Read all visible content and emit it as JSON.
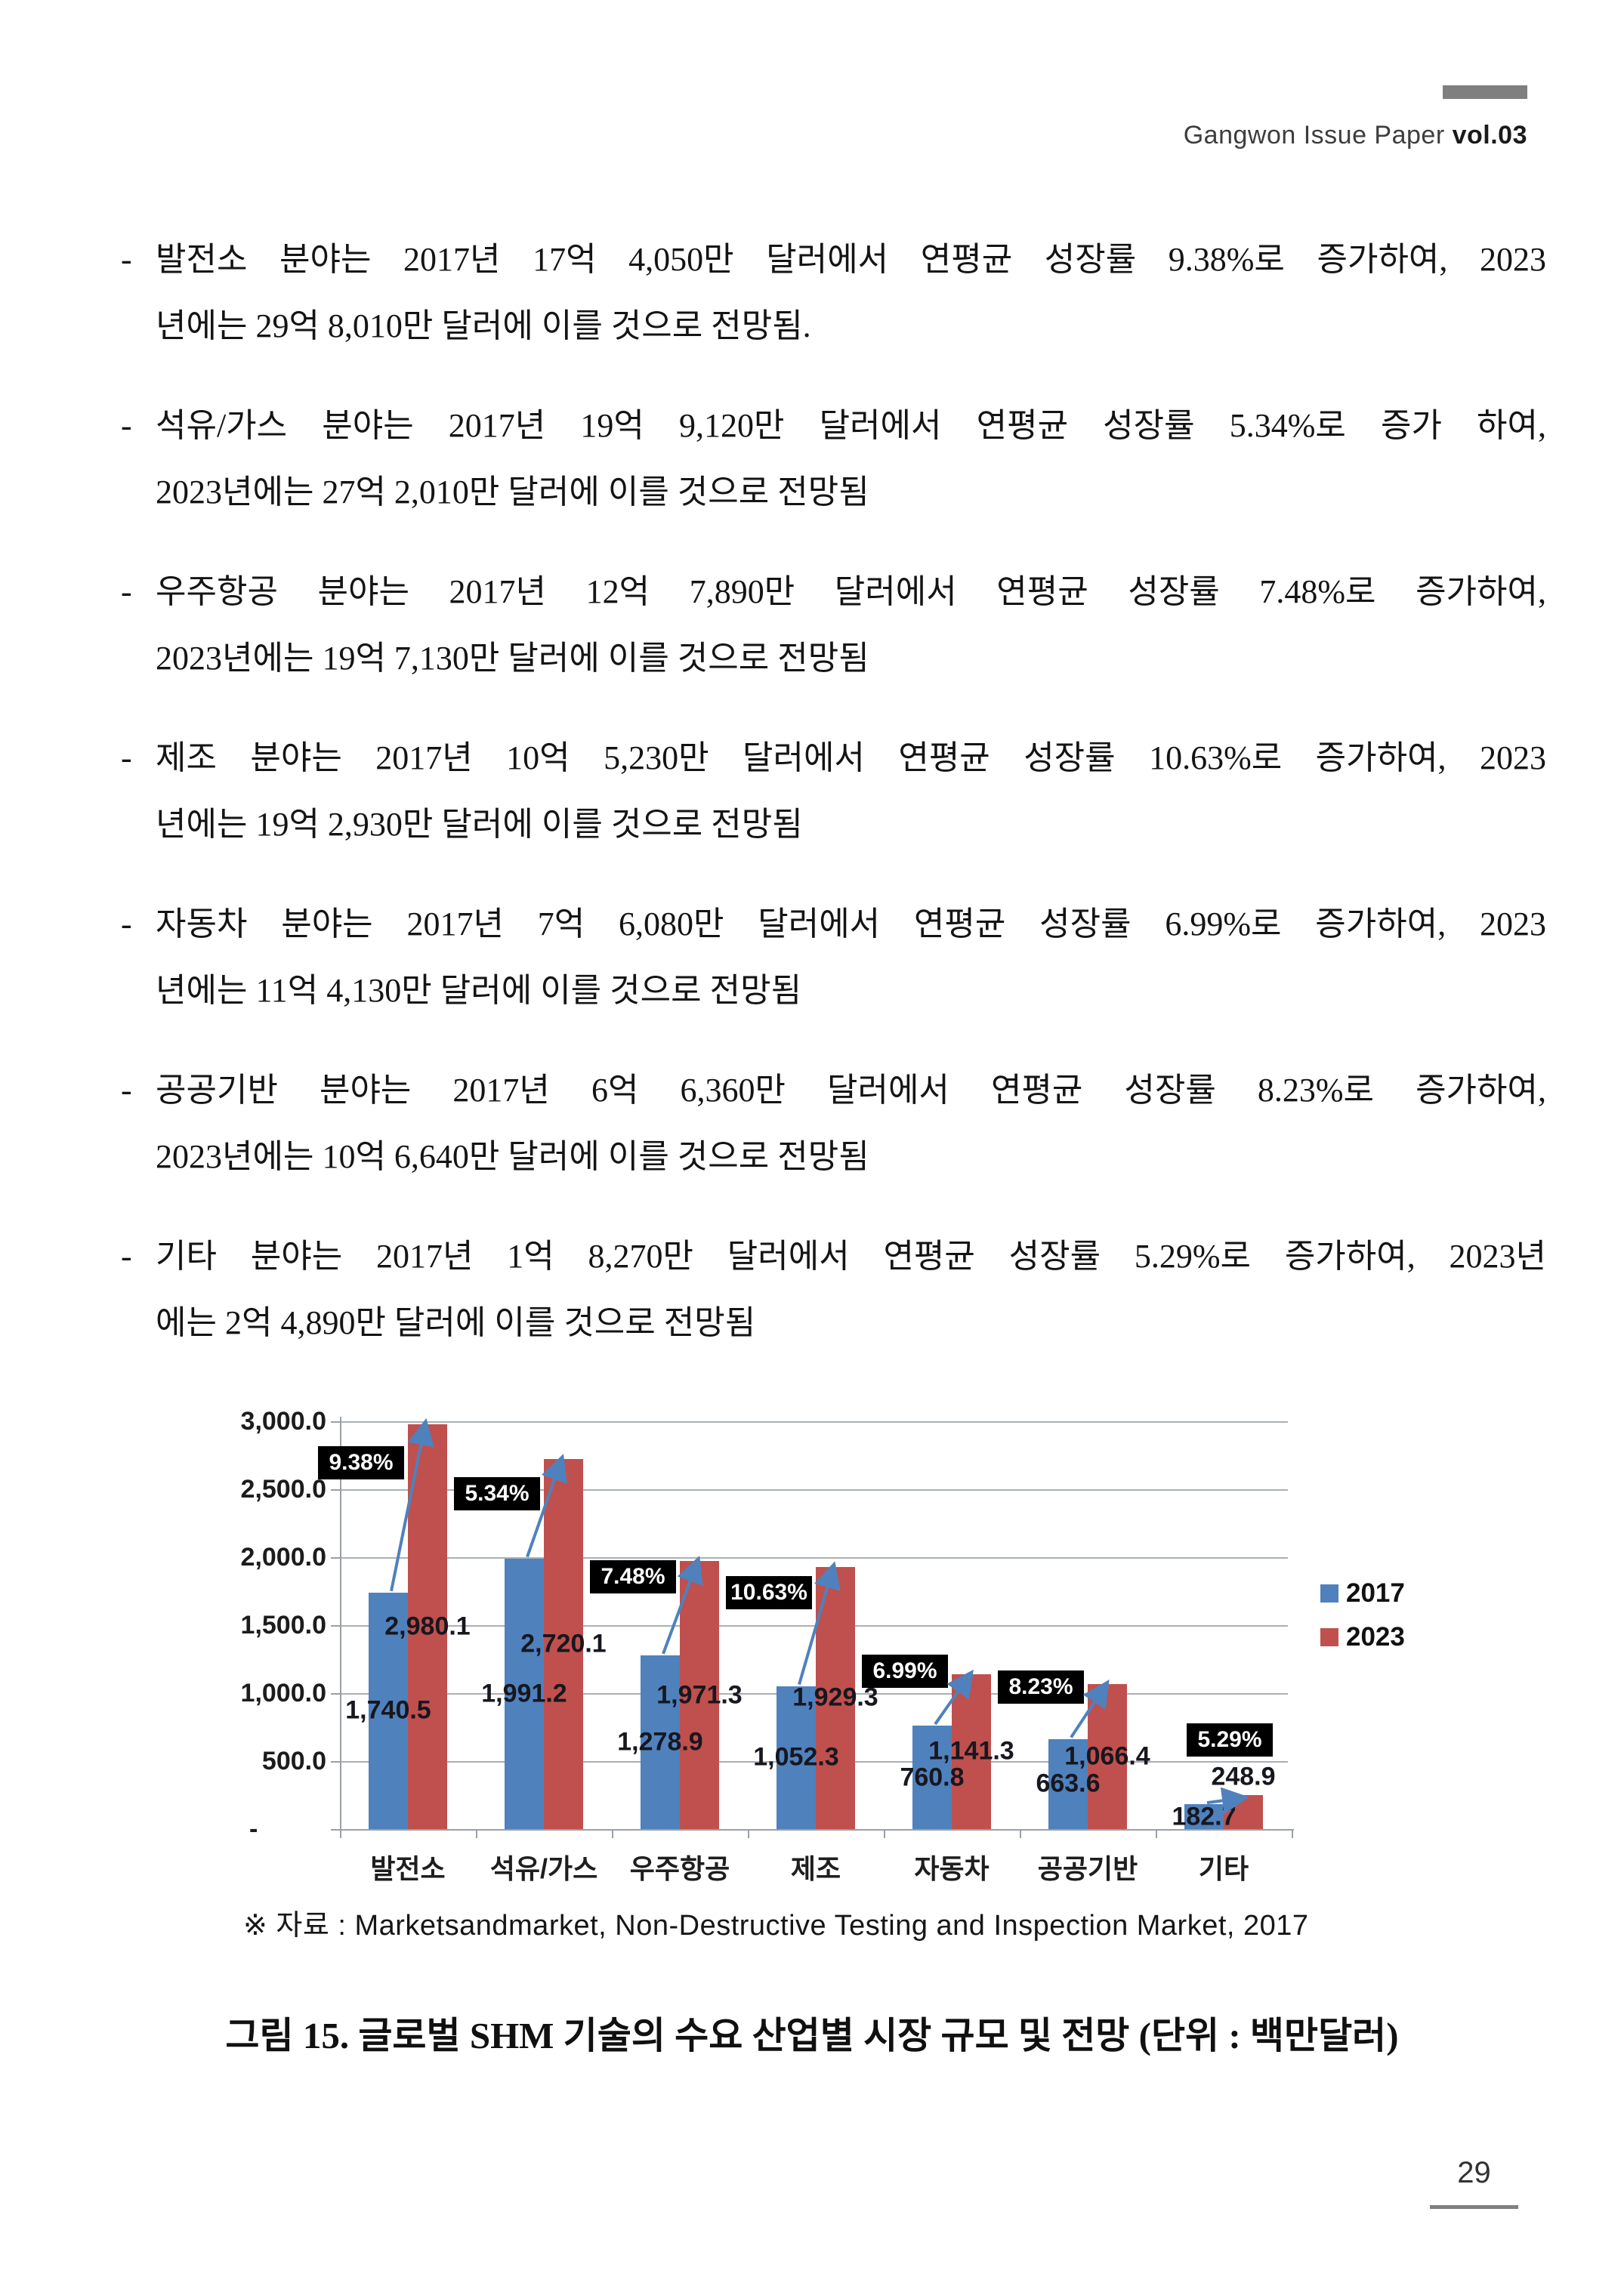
{
  "header": {
    "brand": "Gangwon Issue Paper",
    "volume": "vol.03"
  },
  "bullets": [
    {
      "line1": "발전소 분야는 2017년 17억 4,050만 달러에서 연평균 성장률 9.38%로 증가하여, 2023",
      "line2": "년에는 29억 8,010만 달러에 이를 것으로 전망됨."
    },
    {
      "line1": "석유/가스 분야는 2017년 19억 9,120만 달러에서 연평균 성장률 5.34%로 증가 하여,",
      "line2": "2023년에는 27억 2,010만 달러에 이를 것으로 전망됨"
    },
    {
      "line1": "우주항공 분야는 2017년 12억 7,890만 달러에서 연평균 성장률 7.48%로 증가하여,",
      "line2": "2023년에는 19억 7,130만 달러에 이를 것으로 전망됨"
    },
    {
      "line1": "제조 분야는 2017년 10억 5,230만 달러에서 연평균 성장률 10.63%로 증가하여, 2023",
      "line2": "년에는 19억 2,930만 달러에 이를 것으로 전망됨"
    },
    {
      "line1": "자동차 분야는 2017년 7억 6,080만 달러에서 연평균 성장률 6.99%로 증가하여, 2023",
      "line2": "년에는 11억 4,130만 달러에 이를 것으로 전망됨"
    },
    {
      "line1": "공공기반 분야는 2017년 6억 6,360만 달러에서 연평균 성장률 8.23%로 증가하여,",
      "line2": "2023년에는 10억 6,640만 달러에 이를 것으로 전망됨"
    },
    {
      "line1": "기타 분야는 2017년 1억 8,270만 달러에서 연평균 성장률 5.29%로 증가하여, 2023년",
      "line2": "에는 2억 4,890만 달러에 이를 것으로 전망됨"
    }
  ],
  "chart_data": {
    "type": "bar",
    "categories": [
      "발전소",
      "석유/가스",
      "우주항공",
      "제조",
      "자동차",
      "공공기반",
      "기타"
    ],
    "series": [
      {
        "name": "2017",
        "color": "#4f81bd",
        "values": [
          1740.5,
          1991.2,
          1278.9,
          1052.3,
          760.8,
          663.6,
          182.7
        ],
        "labels": [
          "1,740.5",
          "1,991.2",
          "1,278.9",
          "1,052.3",
          "760.8",
          "663.6",
          "182.7"
        ]
      },
      {
        "name": "2023",
        "color": "#c0504d",
        "values": [
          2980.1,
          2720.1,
          1971.3,
          1929.3,
          1141.3,
          1066.4,
          248.9
        ],
        "labels": [
          "2,980.1",
          "2,720.1",
          "1,971.3",
          "1,929.3",
          "1,141.3",
          "1,066.4",
          "248.9"
        ]
      }
    ],
    "growth_labels": [
      "9.38%",
      "5.34%",
      "7.48%",
      "10.63%",
      "6.99%",
      "8.23%",
      "5.29%"
    ],
    "y_axis": {
      "ticks": [
        {
          "label": "3,000.0",
          "value": 3000
        },
        {
          "label": "2,500.0",
          "value": 2500
        },
        {
          "label": "2,000.0",
          "value": 2000
        },
        {
          "label": "1,500.0",
          "value": 1500
        },
        {
          "label": "1,000.0",
          "value": 1000
        },
        {
          "label": "500.0",
          "value": 500
        },
        {
          "label": "-",
          "value": 0
        }
      ]
    },
    "ylim": [
      0,
      3000
    ],
    "grid": true,
    "legend_position": "right",
    "arrow_color": "#4f81bd",
    "layout": {
      "callout_y": [
        2694,
        2466,
        1858,
        1738,
        1163,
        1043,
        655
      ],
      "callout_dx": [
        -62,
        -62,
        -62,
        -62,
        -62,
        -62,
        8
      ]
    }
  },
  "source_note": "※ 자료 : Marketsandmarket, Non-Destructive Testing and Inspection Market, 2017",
  "caption": "그림 15. 글로벌 SHM 기술의 수요 산업별 시장 규모 및 전망 (단위 : 백만달러)",
  "page_number": "29"
}
